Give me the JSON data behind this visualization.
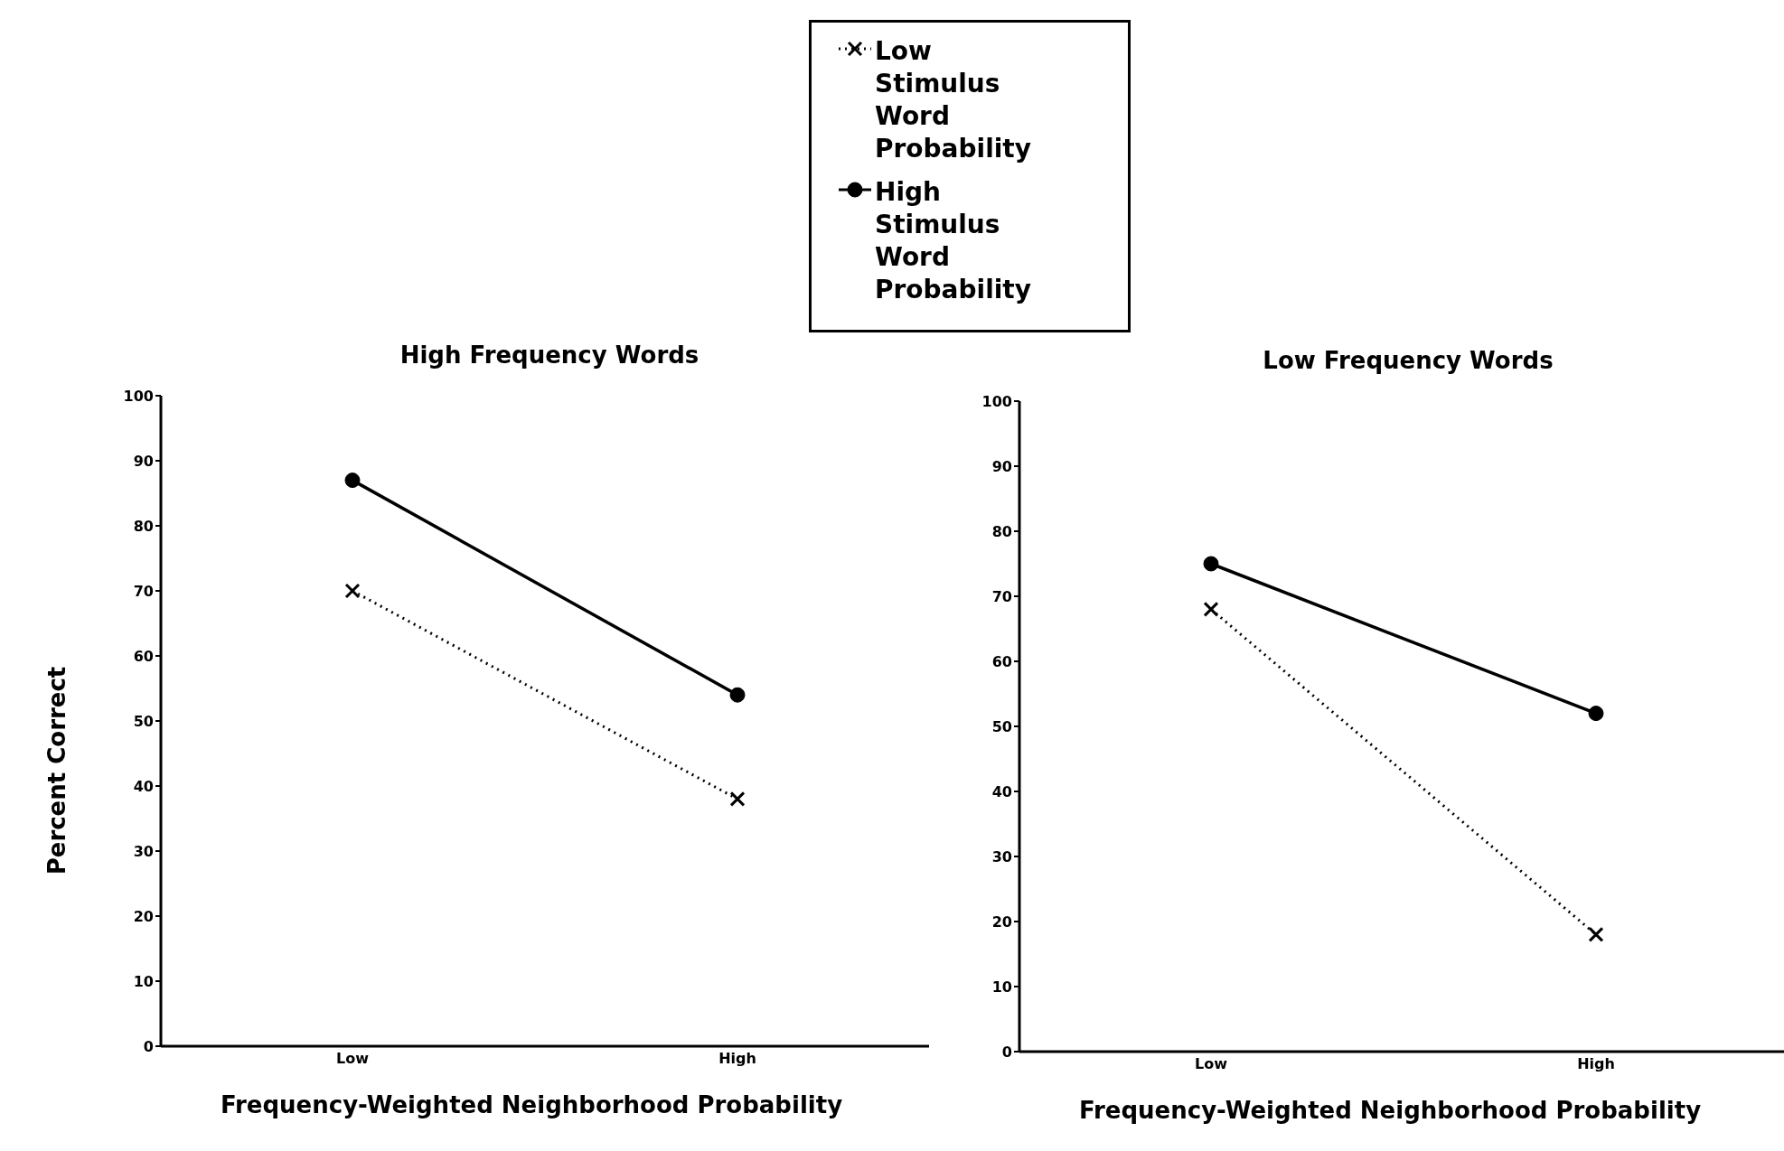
{
  "chart_data": [
    {
      "type": "line",
      "title": "High Frequency Words",
      "xlabel": "Frequency-Weighted Neighborhood Probability",
      "ylabel": "Percent Correct",
      "categories": [
        "Low",
        "High"
      ],
      "ylim": [
        0,
        100
      ],
      "yticks": [
        0,
        10,
        20,
        30,
        40,
        50,
        60,
        70,
        80,
        90,
        100
      ],
      "grid": false,
      "legend": "top",
      "series": [
        {
          "name": "Low Stimulus Word Probability",
          "color": "#000000",
          "values": [
            70,
            38
          ],
          "marker": "cross",
          "line_style": "dotted"
        },
        {
          "name": "High Stimulus Word Probability",
          "color": "#000000",
          "values": [
            87,
            54
          ],
          "marker": "circle",
          "line_style": "solid"
        }
      ]
    },
    {
      "type": "line",
      "title": "Low Frequency Words",
      "xlabel": "Frequency-Weighted Neighborhood Probability",
      "categories": [
        "Low",
        "High"
      ],
      "ylim": [
        0,
        100
      ],
      "yticks": [
        0,
        10,
        20,
        30,
        40,
        50,
        60,
        70,
        80,
        90,
        100
      ],
      "grid": false,
      "series": [
        {
          "color": "#000000",
          "values": [
            68,
            18
          ],
          "marker": "cross",
          "line_style": "dotted"
        },
        {
          "color": "#000000",
          "values": [
            75,
            52
          ],
          "marker": "circle",
          "line_style": "solid"
        }
      ]
    }
  ]
}
